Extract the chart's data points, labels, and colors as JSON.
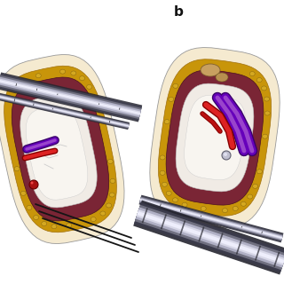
{
  "bg_color": "#ffffff",
  "label_b": "b",
  "colors": {
    "skin_outer": "#f0e0c8",
    "cream": "#f5ead0",
    "gold": "#c8950a",
    "gold_dark": "#a07010",
    "maroon": "#7a2535",
    "maroon_dark": "#4a1020",
    "pink_inner": "#e8d5c5",
    "white_tissue": "#f8f5f0",
    "gray_tissue": "#e0d8d0",
    "purple_dark": "#3a006a",
    "purple_mid": "#6600bb",
    "purple_light": "#9944cc",
    "red_dark": "#880000",
    "red_mid": "#bb1111",
    "red_bright": "#dd2222",
    "steel_darkest": "#252530",
    "steel_dark": "#404050",
    "steel_mid": "#707080",
    "steel_light": "#b0b0c5",
    "steel_bright": "#d8d8e8",
    "steel_white": "#eeeefc",
    "black": "#111111",
    "outline": "#1a1a1a"
  }
}
